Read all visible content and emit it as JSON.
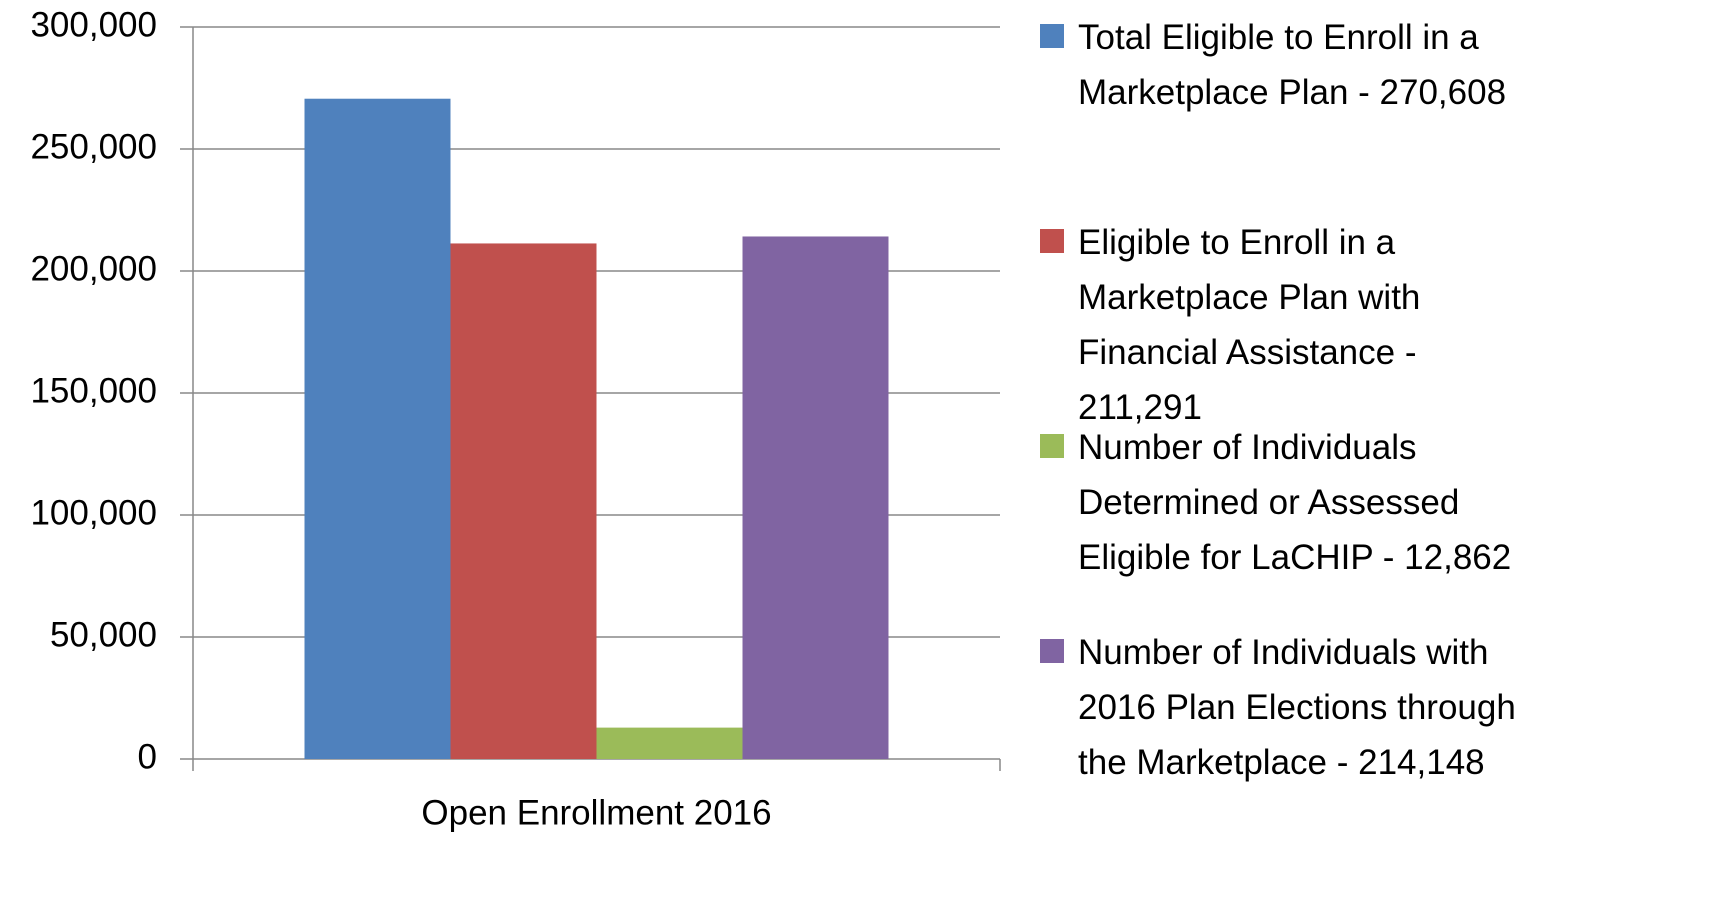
{
  "chart_data": {
    "type": "bar",
    "categories": [
      "Open Enrollment 2016"
    ],
    "series": [
      {
        "name": "Total Eligible to Enroll in a Marketplace Plan - 270,608",
        "color": "#4f81bd",
        "values": [
          270608
        ]
      },
      {
        "name": "Eligible to Enroll in a Marketplace Plan with Financial Assistance - 211,291",
        "color": "#c0504d",
        "values": [
          211291
        ]
      },
      {
        "name": "Number of Individuals Determined or Assessed Eligible for LaCHIP - 12,862",
        "color": "#9bbb59",
        "values": [
          12862
        ]
      },
      {
        "name": "Number of Individuals with 2016 Plan Elections through the Marketplace - 214,148",
        "color": "#8064a2",
        "values": [
          214148
        ]
      }
    ],
    "ylim": [
      0,
      300000
    ],
    "yticks": [
      0,
      {
        "value": 50000,
        "label": "50,000"
      },
      {
        "value": 100000,
        "label": "100,000"
      },
      {
        "value": 150000,
        "label": "150,000"
      },
      {
        "value": 200000,
        "label": "200,000"
      },
      {
        "value": 250000,
        "label": "250,000"
      },
      {
        "value": 300000,
        "label": "300,000"
      }
    ],
    "grid": true
  }
}
